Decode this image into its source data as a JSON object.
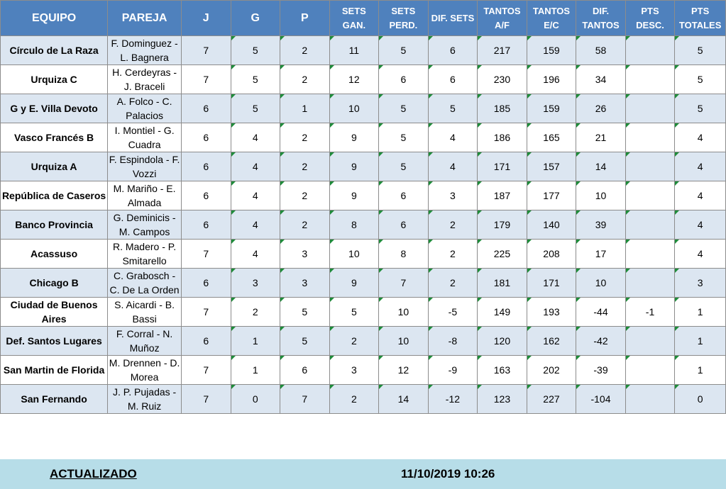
{
  "headers": {
    "equipo": "EQUIPO",
    "pareja": "PAREJA",
    "j": "J",
    "g": "G",
    "p": "P",
    "sets_gan": "SETS GAN.",
    "sets_perd": "SETS PERD.",
    "dif_sets": "DIF. SETS",
    "tantos_af": "TANTOS A/F",
    "tantos_ec": "TANTOS E/C",
    "dif_tantos": "DIF. TANTOS",
    "pts_desc": "PTS DESC.",
    "pts_totales": "PTS TOTALES"
  },
  "rows": [
    {
      "equipo": "Círculo de La Raza",
      "pareja": "F. Dominguez - L. Bagnera",
      "j": "7",
      "g": "5",
      "p": "2",
      "sg": "11",
      "sp": "5",
      "ds": "6",
      "ta": "217",
      "te": "159",
      "dt": "58",
      "pd": "",
      "pt": "5"
    },
    {
      "equipo": "Urquiza C",
      "pareja": "H. Cerdeyras - J. Braceli",
      "j": "7",
      "g": "5",
      "p": "2",
      "sg": "12",
      "sp": "6",
      "ds": "6",
      "ta": "230",
      "te": "196",
      "dt": "34",
      "pd": "",
      "pt": "5"
    },
    {
      "equipo": "G y E. Villa Devoto",
      "pareja": "A. Folco - C. Palacios",
      "j": "6",
      "g": "5",
      "p": "1",
      "sg": "10",
      "sp": "5",
      "ds": "5",
      "ta": "185",
      "te": "159",
      "dt": "26",
      "pd": "",
      "pt": "5"
    },
    {
      "equipo": "Vasco Francés B",
      "pareja": "I. Montiel - G. Cuadra",
      "j": "6",
      "g": "4",
      "p": "2",
      "sg": "9",
      "sp": "5",
      "ds": "4",
      "ta": "186",
      "te": "165",
      "dt": "21",
      "pd": "",
      "pt": "4"
    },
    {
      "equipo": "Urquiza A",
      "pareja": "F. Espindola - F. Vozzi",
      "j": "6",
      "g": "4",
      "p": "2",
      "sg": "9",
      "sp": "5",
      "ds": "4",
      "ta": "171",
      "te": "157",
      "dt": "14",
      "pd": "",
      "pt": "4"
    },
    {
      "equipo": "República de Caseros",
      "pareja": "M. Mariño - E. Almada",
      "j": "6",
      "g": "4",
      "p": "2",
      "sg": "9",
      "sp": "6",
      "ds": "3",
      "ta": "187",
      "te": "177",
      "dt": "10",
      "pd": "",
      "pt": "4"
    },
    {
      "equipo": "Banco Provincia",
      "pareja": "G. Deminicis - M. Campos",
      "j": "6",
      "g": "4",
      "p": "2",
      "sg": "8",
      "sp": "6",
      "ds": "2",
      "ta": "179",
      "te": "140",
      "dt": "39",
      "pd": "",
      "pt": "4"
    },
    {
      "equipo": "Acassuso",
      "pareja": "R. Madero - P. Smitarello",
      "j": "7",
      "g": "4",
      "p": "3",
      "sg": "10",
      "sp": "8",
      "ds": "2",
      "ta": "225",
      "te": "208",
      "dt": "17",
      "pd": "",
      "pt": "4"
    },
    {
      "equipo": "Chicago B",
      "pareja": "C. Grabosch - C. De La Orden",
      "j": "6",
      "g": "3",
      "p": "3",
      "sg": "9",
      "sp": "7",
      "ds": "2",
      "ta": "181",
      "te": "171",
      "dt": "10",
      "pd": "",
      "pt": "3"
    },
    {
      "equipo": "Ciudad de Buenos Aires",
      "pareja": "S. Aicardi - B. Bassi",
      "j": "7",
      "g": "2",
      "p": "5",
      "sg": "5",
      "sp": "10",
      "ds": "-5",
      "ta": "149",
      "te": "193",
      "dt": "-44",
      "pd": "-1",
      "pt": "1"
    },
    {
      "equipo": "Def. Santos Lugares",
      "pareja": "F. Corral - N. Muñoz",
      "j": "6",
      "g": "1",
      "p": "5",
      "sg": "2",
      "sp": "10",
      "ds": "-8",
      "ta": "120",
      "te": "162",
      "dt": "-42",
      "pd": "",
      "pt": "1"
    },
    {
      "equipo": "San Martin de Florida",
      "pareja": "M. Drennen - D. Morea",
      "j": "7",
      "g": "1",
      "p": "6",
      "sg": "3",
      "sp": "12",
      "ds": "-9",
      "ta": "163",
      "te": "202",
      "dt": "-39",
      "pd": "",
      "pt": "1"
    },
    {
      "equipo": "San Fernando",
      "pareja": "J. P. Pujadas - M. Ruiz",
      "j": "7",
      "g": "0",
      "p": "7",
      "sg": "2",
      "sp": "14",
      "ds": "-12",
      "ta": "123",
      "te": "227",
      "dt": "-104",
      "pd": "",
      "pt": "0"
    }
  ],
  "footer": {
    "label": "ACTUALIZADO",
    "timestamp": "11/10/2019 10:26"
  },
  "colors": {
    "header_bg": "#4f81bd",
    "row_alt_bg": "#dce6f1",
    "footer_bg": "#b7dde8",
    "cell_marker": "#1e8c3a"
  }
}
